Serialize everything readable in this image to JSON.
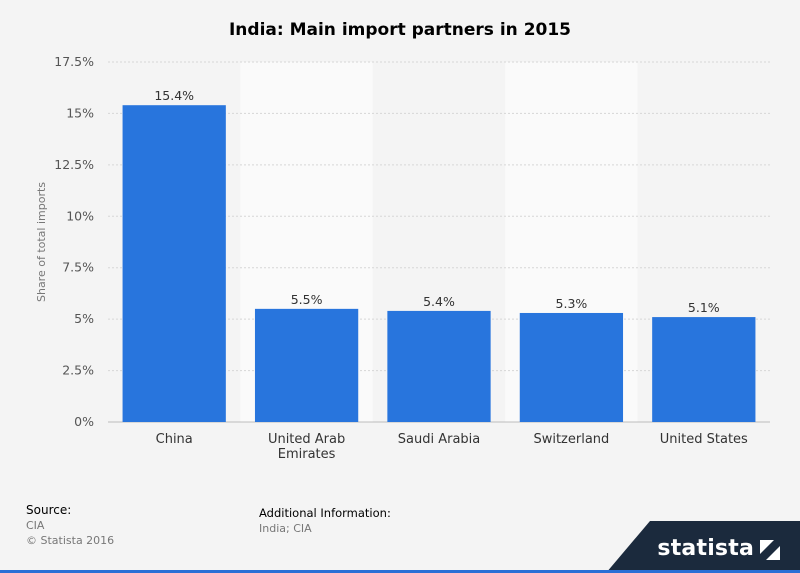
{
  "title": "India: Main import partners in 2015",
  "chart_data": {
    "type": "bar",
    "title": "India: Main import partners in 2015",
    "categories": [
      [
        "China"
      ],
      [
        "United Arab",
        "Emirates"
      ],
      [
        "Saudi Arabia"
      ],
      [
        "Switzerland"
      ],
      [
        "United States"
      ]
    ],
    "values": [
      15.4,
      5.5,
      5.4,
      5.3,
      5.1
    ],
    "data_labels": [
      "15.4%",
      "5.5%",
      "5.4%",
      "5.3%",
      "5.1%"
    ],
    "ylabel": "Share of total imports",
    "xlabel": "",
    "ylim": [
      0,
      17.5
    ],
    "yticks": [
      0,
      2.5,
      5,
      7.5,
      10,
      12.5,
      15,
      17.5
    ],
    "ytick_labels": [
      "0%",
      "2.5%",
      "5%",
      "7.5%",
      "10%",
      "12.5%",
      "15%",
      "17.5%"
    ],
    "bar_color": "#2875dd",
    "grid": true
  },
  "footer": {
    "source_heading": "Source:",
    "source_value": "CIA",
    "copyright": "© Statista 2016",
    "additional_heading": "Additional Information:",
    "additional_value": "India; CIA",
    "logo_text": "statista",
    "logo_icon": "statista-logo-icon"
  }
}
